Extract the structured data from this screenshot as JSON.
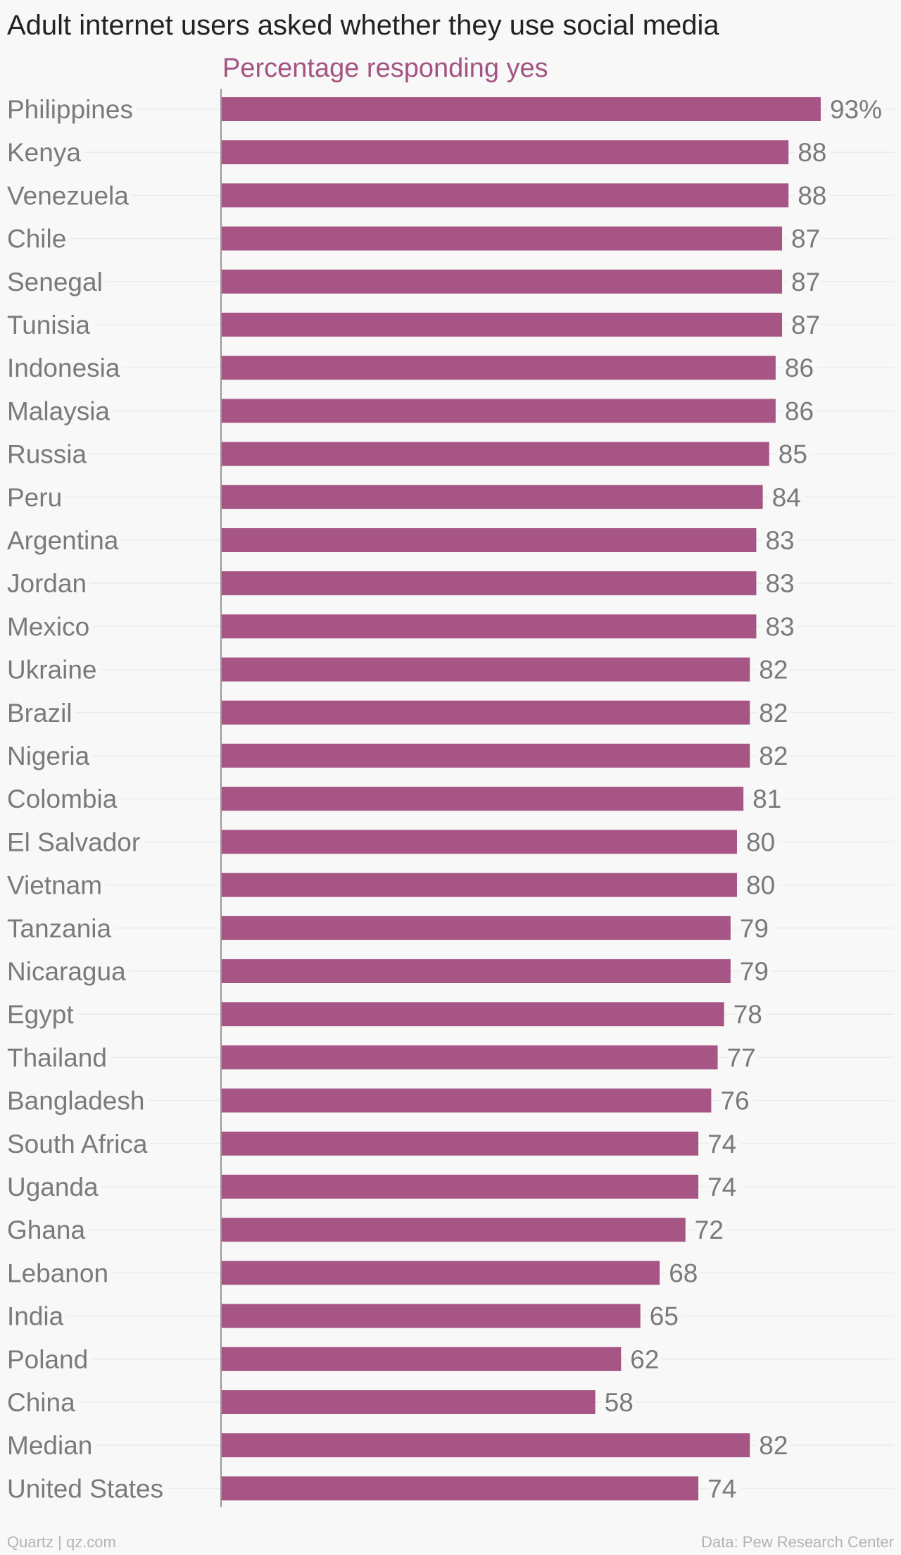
{
  "chart_data": {
    "type": "bar",
    "orientation": "horizontal",
    "title": "Adult internet users asked whether they use social media",
    "subtitle": "Percentage responding yes",
    "xlabel": "",
    "ylabel": "",
    "xlim": [
      0,
      100
    ],
    "value_suffix_first": "%",
    "grid": false,
    "bar_color": "#a65584",
    "categories": [
      "Philippines",
      "Kenya",
      "Venezuela",
      "Chile",
      "Senegal",
      "Tunisia",
      "Indonesia",
      "Malaysia",
      "Russia",
      "Peru",
      "Argentina",
      "Jordan",
      "Mexico",
      "Ukraine",
      "Brazil",
      "Nigeria",
      "Colombia",
      "El Salvador",
      "Vietnam",
      "Tanzania",
      "Nicaragua",
      "Egypt",
      "Thailand",
      "Bangladesh",
      "South Africa",
      "Uganda",
      "Ghana",
      "Lebanon",
      "India",
      "Poland",
      "China",
      "Median",
      "United States"
    ],
    "values": [
      93,
      88,
      88,
      87,
      87,
      87,
      86,
      86,
      85,
      84,
      83,
      83,
      83,
      82,
      82,
      82,
      81,
      80,
      80,
      79,
      79,
      78,
      77,
      76,
      74,
      74,
      72,
      68,
      65,
      62,
      58,
      82,
      74
    ]
  },
  "footer": {
    "credit": "Quartz | qz.com",
    "source": "Data: Pew Research Center"
  }
}
